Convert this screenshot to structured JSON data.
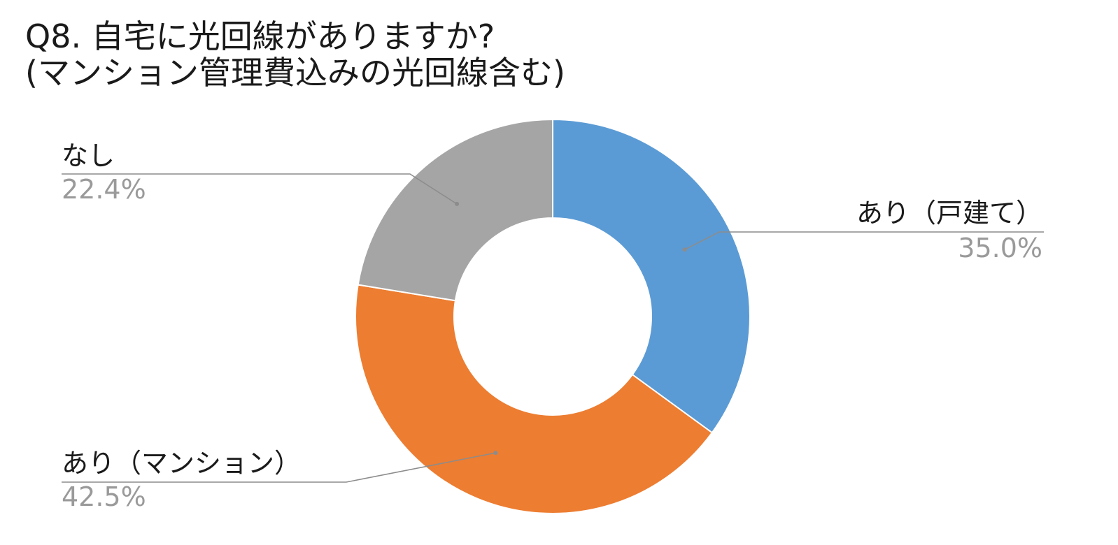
{
  "chart_data": {
    "type": "pie",
    "style": "donut",
    "title_lines": [
      "Q8. 自宅に光回線がありますか?",
      "(マンション管理費込みの光回線含む)"
    ],
    "slices": [
      {
        "label": "あり（戸建て）",
        "value": 35.0,
        "value_label": "35.0%",
        "color": "#5b9bd5"
      },
      {
        "label": "あり（マンション）",
        "value": 42.5,
        "value_label": "42.5%",
        "color": "#ed7d31"
      },
      {
        "label": "なし",
        "value": 22.4,
        "value_label": "22.4%",
        "color": "#a5a5a5"
      }
    ],
    "start_angle": "12 o'clock",
    "direction": "clockwise",
    "legend": "none",
    "data_labels": "outside with leader lines"
  }
}
